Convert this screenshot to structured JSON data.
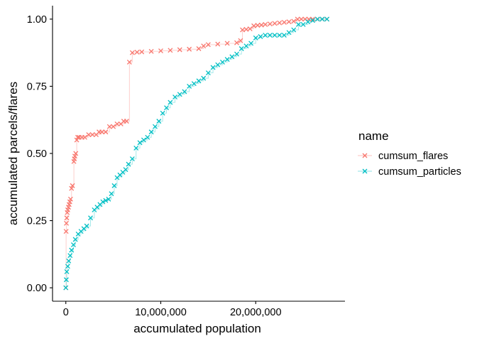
{
  "chart_data": {
    "type": "line",
    "xlabel": "accumulated population",
    "ylabel": "accumulated parcels/flares",
    "xlim": [
      -1400000,
      29400000
    ],
    "ylim": [
      -0.05,
      1.05
    ],
    "x_ticks": [
      0,
      10000000,
      20000000
    ],
    "x_tick_labels": [
      "0",
      "10,000,000",
      "20,000,000"
    ],
    "y_ticks": [
      0,
      0.25,
      0.5,
      0.75,
      1.0
    ],
    "y_tick_labels": [
      "0.00",
      "0.25",
      "0.50",
      "0.75",
      "1.00"
    ],
    "grid": false,
    "legend": {
      "title": "name",
      "position": "right"
    },
    "series": [
      {
        "name": "cumsum_flares",
        "color": "#F8766D",
        "marker": "x",
        "x": [
          0,
          30000,
          60000,
          100000,
          150000,
          200000,
          280000,
          350000,
          420000,
          500000,
          600000,
          700000,
          850000,
          900000,
          950000,
          1050000,
          1150000,
          1250000,
          1400000,
          1700000,
          2000000,
          2400000,
          2800000,
          3200000,
          3500000,
          3800000,
          4200000,
          4600000,
          5000000,
          5400000,
          5800000,
          6100000,
          6400000,
          6700000,
          7000000,
          7500000,
          8000000,
          9000000,
          10000000,
          11000000,
          12000000,
          13000000,
          14000000,
          14500000,
          15000000,
          16000000,
          17000000,
          18000000,
          18400000,
          18600000,
          19000000,
          19400000,
          19800000,
          20200000,
          20600000,
          21000000,
          21500000,
          22000000,
          22500000,
          23000000,
          23500000,
          24000000,
          24400000,
          24800000,
          25200000,
          25600000,
          26000000,
          26500000,
          27000000,
          27500000
        ],
        "y": [
          0.0,
          0.21,
          0.24,
          0.26,
          0.28,
          0.29,
          0.3,
          0.31,
          0.32,
          0.33,
          0.37,
          0.38,
          0.47,
          0.48,
          0.49,
          0.5,
          0.55,
          0.56,
          0.56,
          0.56,
          0.56,
          0.57,
          0.57,
          0.57,
          0.58,
          0.58,
          0.58,
          0.6,
          0.6,
          0.61,
          0.61,
          0.62,
          0.62,
          0.84,
          0.875,
          0.877,
          0.878,
          0.88,
          0.882,
          0.884,
          0.886,
          0.888,
          0.89,
          0.9,
          0.905,
          0.907,
          0.91,
          0.912,
          0.92,
          0.96,
          0.962,
          0.964,
          0.975,
          0.977,
          0.978,
          0.98,
          0.982,
          0.984,
          0.986,
          0.988,
          0.99,
          0.992,
          1.0,
          1.0,
          1.0,
          1.0,
          1.0,
          1.0,
          1.0,
          1.0
        ]
      },
      {
        "name": "cumsum_particles",
        "color": "#00BFC4",
        "marker": "x",
        "x": [
          0,
          50000,
          100000,
          200000,
          300000,
          450000,
          600000,
          800000,
          1000000,
          1300000,
          1600000,
          1900000,
          2200000,
          2600000,
          3000000,
          3300000,
          3600000,
          3900000,
          4200000,
          4500000,
          4800000,
          5100000,
          5400000,
          5700000,
          6000000,
          6300000,
          6600000,
          7000000,
          7400000,
          7800000,
          8200000,
          8600000,
          9000000,
          9400000,
          9800000,
          10200000,
          10600000,
          11000000,
          11500000,
          12000000,
          12500000,
          13000000,
          13500000,
          14000000,
          14500000,
          15000000,
          15500000,
          16000000,
          16500000,
          17000000,
          17500000,
          18000000,
          18500000,
          19000000,
          19500000,
          20000000,
          20500000,
          21000000,
          21500000,
          22000000,
          22500000,
          23000000,
          23500000,
          24000000,
          24500000,
          25000000,
          25500000,
          26000000,
          26500000,
          27000000,
          27500000
        ],
        "y": [
          0.0,
          0.03,
          0.06,
          0.08,
          0.1,
          0.12,
          0.14,
          0.16,
          0.18,
          0.2,
          0.21,
          0.22,
          0.23,
          0.26,
          0.29,
          0.3,
          0.31,
          0.32,
          0.325,
          0.33,
          0.35,
          0.38,
          0.41,
          0.42,
          0.43,
          0.44,
          0.46,
          0.48,
          0.52,
          0.54,
          0.55,
          0.56,
          0.58,
          0.6,
          0.62,
          0.65,
          0.67,
          0.69,
          0.71,
          0.72,
          0.73,
          0.75,
          0.76,
          0.77,
          0.78,
          0.8,
          0.82,
          0.83,
          0.84,
          0.85,
          0.86,
          0.87,
          0.89,
          0.9,
          0.91,
          0.93,
          0.935,
          0.94,
          0.94,
          0.94,
          0.94,
          0.94,
          0.95,
          0.96,
          0.98,
          0.98,
          0.99,
          0.995,
          1.0,
          1.0,
          1.0
        ]
      }
    ]
  }
}
